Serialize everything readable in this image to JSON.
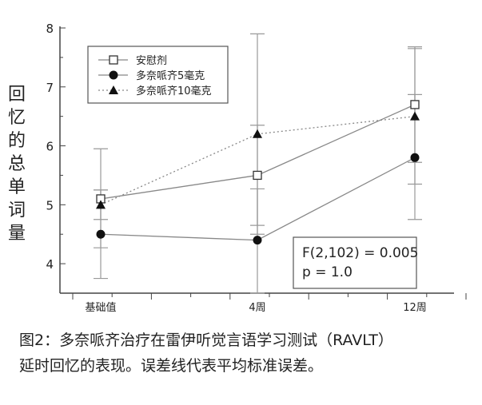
{
  "chart_data": {
    "type": "line",
    "categories": [
      "基础值",
      "4周",
      "12周"
    ],
    "ylabel": "回忆的总单词量",
    "ylim": [
      3.5,
      8
    ],
    "yticks": [
      4,
      5,
      6,
      7,
      8
    ],
    "grid": false,
    "legend_position": "top-left",
    "series": [
      {
        "name": "安慰剂",
        "marker": "open-square",
        "line": "solid",
        "values": [
          5.1,
          5.5,
          6.7
        ],
        "error": [
          [
            4.27,
            5.95
          ],
          [
            4.65,
            6.35
          ],
          [
            5.72,
            7.68
          ]
        ]
      },
      {
        "name": "多奈哌齐5毫克",
        "marker": "filled-circle",
        "line": "solid",
        "values": [
          4.5,
          4.4,
          5.8
        ],
        "error": [
          [
            3.75,
            5.25
          ],
          [
            3.5,
            5.27
          ],
          [
            4.75,
            6.87
          ]
        ]
      },
      {
        "name": "多奈哌齐10毫克",
        "marker": "filled-triangle",
        "line": "dotted",
        "values": [
          5.0,
          6.2,
          6.5
        ],
        "error": [
          [
            4.75,
            5.25
          ],
          [
            4.5,
            7.9
          ],
          [
            5.35,
            7.65
          ]
        ]
      }
    ],
    "annotation": [
      "F(2,102) = 0.005",
      "p = 1.0"
    ]
  },
  "caption": {
    "line1": "图2：多奈哌齐治疗在雷伊听觉言语学习测试（RAVLT）",
    "line2": "延时回忆的表现。误差线代表平均标准误差。"
  }
}
